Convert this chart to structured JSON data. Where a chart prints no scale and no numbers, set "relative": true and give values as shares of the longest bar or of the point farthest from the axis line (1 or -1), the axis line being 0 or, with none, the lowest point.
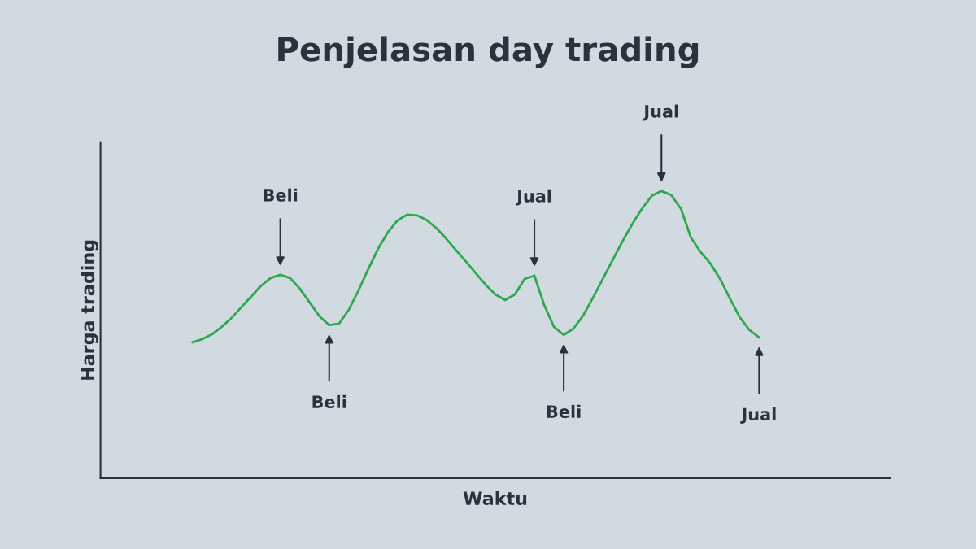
{
  "chart_data": {
    "type": "line",
    "title": "Penjelasan day trading",
    "xlabel": "Waktu",
    "ylabel": "Harga trading",
    "relative": true,
    "grid": false,
    "legend": false,
    "categories": [
      null,
      null,
      null,
      null,
      null,
      null,
      null,
      null,
      null,
      null,
      null,
      null,
      null,
      null,
      null,
      null,
      null,
      null,
      null,
      null,
      null,
      null,
      null,
      null,
      null,
      null,
      null,
      null,
      null,
      null,
      null,
      null,
      null,
      null,
      null,
      null,
      null,
      null,
      null,
      null,
      null,
      null,
      null,
      null,
      null,
      null,
      null,
      null,
      null,
      null,
      null,
      null,
      null,
      null,
      null,
      null,
      null,
      null,
      null
    ],
    "series": [
      {
        "color": "#2ea84f",
        "values": [
          0.473,
          0.484,
          0.501,
          0.527,
          0.558,
          0.595,
          0.632,
          0.669,
          0.697,
          0.708,
          0.697,
          0.66,
          0.612,
          0.564,
          0.533,
          0.538,
          0.586,
          0.654,
          0.728,
          0.799,
          0.856,
          0.898,
          0.918,
          0.915,
          0.898,
          0.87,
          0.833,
          0.793,
          0.754,
          0.714,
          0.674,
          0.64,
          0.62,
          0.64,
          0.694,
          0.705,
          0.603,
          0.527,
          0.499,
          0.521,
          0.567,
          0.629,
          0.694,
          0.759,
          0.824,
          0.884,
          0.938,
          0.983,
          1,
          0.986,
          0.938,
          0.839,
          0.788,
          0.748,
          0.694,
          0.626,
          0.561,
          0.516,
          0.49
        ]
      }
    ],
    "annotations": [
      "Beli",
      "Beli",
      "Jual",
      "Beli",
      "Jual",
      "Jual"
    ]
  }
}
